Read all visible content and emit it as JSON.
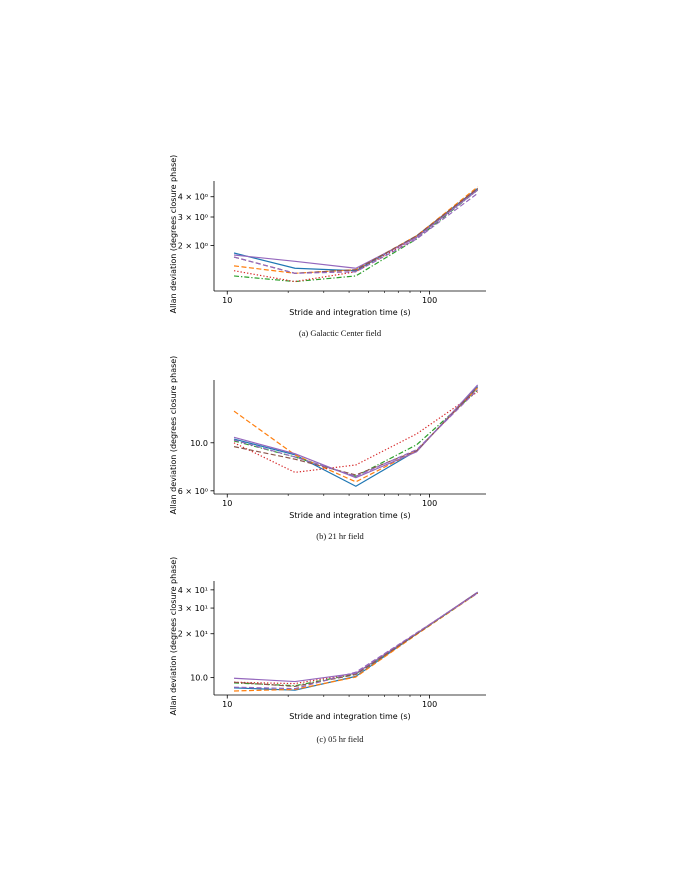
{
  "captions": [
    "(a) Galactic Center field",
    "(b) 21 hr field",
    "(c) 05 hr field"
  ],
  "chart_data": [
    {
      "type": "line",
      "title": "",
      "xlabel": "Stride and integration time (s)",
      "ylabel": "Allan deviation (degrees closure phase)",
      "xscale": "log",
      "yscale": "log",
      "xlim": [
        8.6,
        190
      ],
      "ylim": [
        1.05,
        5.0
      ],
      "x_ticks": [
        {
          "value": 10,
          "label": "10"
        },
        {
          "value": 100,
          "label": "100"
        }
      ],
      "y_ticks": [
        {
          "value": 2,
          "label": "2 × 10⁰"
        },
        {
          "value": 3,
          "label": "3 × 10⁰"
        },
        {
          "value": 4,
          "label": "4 × 10⁰"
        }
      ],
      "grid": false,
      "series": [
        {
          "color": "#1f77b4",
          "dash": "solid",
          "x": [
            10.8,
            21.6,
            43.2,
            86.4,
            172.8
          ],
          "y": [
            1.8,
            1.45,
            1.4,
            2.3,
            4.5
          ]
        },
        {
          "color": "#ff7f0e",
          "dash": "dashed",
          "x": [
            10.8,
            21.6,
            43.2,
            86.4,
            172.8
          ],
          "y": [
            1.5,
            1.35,
            1.42,
            2.3,
            4.6
          ]
        },
        {
          "color": "#2ca02c",
          "dash": "dashdot",
          "x": [
            10.8,
            21.6,
            43.2,
            86.4,
            172.8
          ],
          "y": [
            1.3,
            1.2,
            1.3,
            2.2,
            4.4
          ]
        },
        {
          "color": "#d62728",
          "dash": "dotted",
          "x": [
            10.8,
            21.6,
            43.2,
            86.4,
            172.8
          ],
          "y": [
            1.4,
            1.2,
            1.38,
            2.25,
            4.45
          ]
        },
        {
          "color": "#9467bd",
          "dash": "solid",
          "x": [
            10.8,
            21.6,
            43.2,
            86.4,
            172.8
          ],
          "y": [
            1.75,
            1.6,
            1.45,
            2.25,
            4.4
          ]
        },
        {
          "color": "#8c564b",
          "dash": "dashed",
          "x": [
            10.8,
            21.6,
            43.2,
            86.4,
            172.8
          ],
          "y": [
            1.7,
            1.35,
            1.42,
            2.3,
            4.5
          ]
        },
        {
          "color": "#9467bd",
          "dash": "dashed",
          "x": [
            10.8,
            21.6,
            43.2,
            86.4,
            172.8
          ],
          "y": [
            1.7,
            1.35,
            1.38,
            2.2,
            4.2
          ]
        }
      ]
    },
    {
      "type": "line",
      "title": "",
      "xlabel": "Stride and integration time (s)",
      "ylabel": "Allan deviation (degrees closure phase)",
      "xscale": "log",
      "yscale": "log",
      "xlim": [
        8.6,
        190
      ],
      "ylim": [
        5.8,
        19.5
      ],
      "x_ticks": [
        {
          "value": 10,
          "label": "10"
        },
        {
          "value": 100,
          "label": "100"
        }
      ],
      "y_ticks": [
        {
          "value": 6,
          "label": "6 × 10⁰"
        },
        {
          "value": 10,
          "label": "10.0"
        }
      ],
      "grid": false,
      "series": [
        {
          "color": "#1f77b4",
          "dash": "solid",
          "x": [
            10.8,
            21.6,
            43.2,
            86.4,
            172.8
          ],
          "y": [
            10.4,
            8.8,
            6.3,
            9.2,
            18.2
          ]
        },
        {
          "color": "#ff7f0e",
          "dash": "dashed",
          "x": [
            10.8,
            21.6,
            43.2,
            86.4,
            172.8
          ],
          "y": [
            14.0,
            8.8,
            6.6,
            9.2,
            18.0
          ]
        },
        {
          "color": "#2ca02c",
          "dash": "dashdot",
          "x": [
            10.8,
            21.6,
            43.2,
            86.4,
            172.8
          ],
          "y": [
            10.2,
            8.6,
            7.0,
            9.8,
            17.5
          ]
        },
        {
          "color": "#d62728",
          "dash": "dotted",
          "x": [
            10.8,
            21.6,
            43.2,
            86.4,
            172.8
          ],
          "y": [
            10.0,
            7.3,
            7.9,
            11.0,
            17.2
          ]
        },
        {
          "color": "#9467bd",
          "dash": "solid",
          "x": [
            10.8,
            21.6,
            43.2,
            86.4,
            172.8
          ],
          "y": [
            10.6,
            8.9,
            6.9,
            9.1,
            18.5
          ]
        },
        {
          "color": "#8c564b",
          "dash": "dashed",
          "x": [
            10.8,
            21.6,
            43.2,
            86.4,
            172.8
          ],
          "y": [
            9.6,
            8.4,
            7.1,
            9.2,
            18.0
          ]
        },
        {
          "color": "#9467bd",
          "dash": "dashed",
          "x": [
            10.8,
            21.6,
            43.2,
            86.4,
            172.8
          ],
          "y": [
            10.3,
            8.6,
            7.0,
            9.3,
            17.6
          ]
        }
      ]
    },
    {
      "type": "line",
      "title": "",
      "xlabel": "Stride and integration time (s)",
      "ylabel": "Allan deviation (degrees closure phase)",
      "xscale": "log",
      "yscale": "log",
      "xlim": [
        8.6,
        190
      ],
      "ylim": [
        7.6,
        46
      ],
      "x_ticks": [
        {
          "value": 10,
          "label": "10"
        },
        {
          "value": 100,
          "label": "100"
        }
      ],
      "y_ticks": [
        {
          "value": 10,
          "label": "10.0"
        },
        {
          "value": 20,
          "label": "2 × 10¹"
        },
        {
          "value": 30,
          "label": "3 × 10¹"
        },
        {
          "value": 40,
          "label": "4 × 10¹"
        }
      ],
      "grid": false,
      "series": [
        {
          "color": "#1f77b4",
          "dash": "solid",
          "x": [
            10.8,
            21.6,
            43.2,
            86.4,
            172.8
          ],
          "y": [
            8.5,
            8.2,
            10.2,
            20.0,
            38.5
          ]
        },
        {
          "color": "#ff7f0e",
          "dash": "dashed",
          "x": [
            10.8,
            21.6,
            43.2,
            86.4,
            172.8
          ],
          "y": [
            8.1,
            8.3,
            10.1,
            19.8,
            38.0
          ]
        },
        {
          "color": "#2ca02c",
          "dash": "dashdot",
          "x": [
            10.8,
            21.6,
            43.2,
            86.4,
            172.8
          ],
          "y": [
            9.2,
            8.8,
            10.6,
            20.0,
            38.2
          ]
        },
        {
          "color": "#d62728",
          "dash": "dotted",
          "x": [
            10.8,
            21.6,
            43.2,
            86.4,
            172.8
          ],
          "y": [
            9.3,
            9.1,
            10.7,
            20.2,
            38.3
          ]
        },
        {
          "color": "#9467bd",
          "dash": "solid",
          "x": [
            10.8,
            21.6,
            43.2,
            86.4,
            172.8
          ],
          "y": [
            9.9,
            9.4,
            10.7,
            20.1,
            38.6
          ]
        },
        {
          "color": "#8c564b",
          "dash": "dashed",
          "x": [
            10.8,
            21.6,
            43.2,
            86.4,
            172.8
          ],
          "y": [
            9.3,
            8.7,
            10.5,
            20.0,
            38.4
          ]
        },
        {
          "color": "#9467bd",
          "dash": "dashed",
          "x": [
            10.8,
            21.6,
            43.2,
            86.4,
            172.8
          ],
          "y": [
            8.6,
            8.4,
            10.9,
            20.3,
            38.0
          ]
        }
      ]
    }
  ]
}
